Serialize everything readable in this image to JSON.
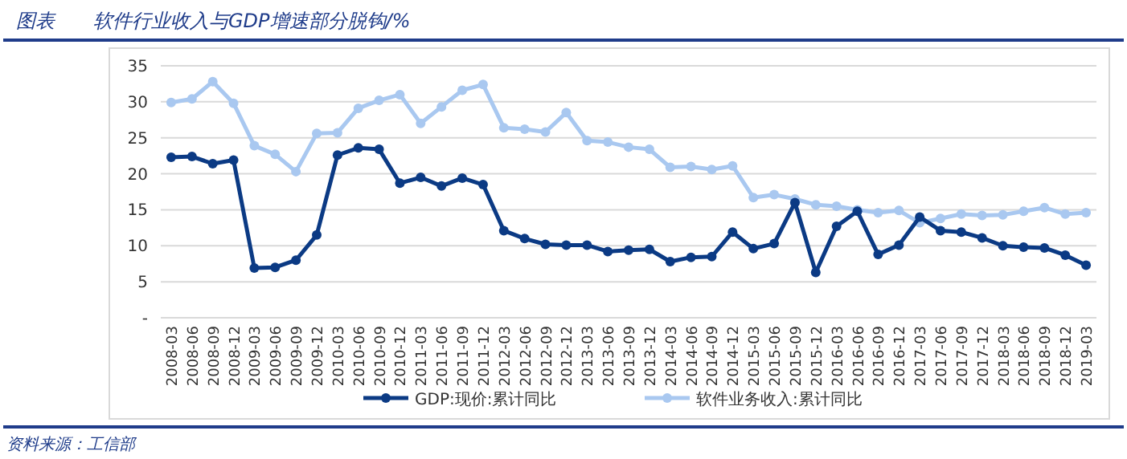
{
  "chart_data": {
    "type": "line",
    "title": "图表　　软件行业收入与GDP增速部分脱钩/%",
    "annotations": [
      "资料来源：工信部"
    ],
    "categories": [
      "2008-03",
      "2008-06",
      "2008-09",
      "2008-12",
      "2009-03",
      "2009-06",
      "2009-09",
      "2009-12",
      "2010-03",
      "2010-06",
      "2010-09",
      "2010-12",
      "2011-03",
      "2011-06",
      "2011-09",
      "2011-12",
      "2012-03",
      "2012-06",
      "2012-09",
      "2012-12",
      "2013-03",
      "2013-06",
      "2013-09",
      "2013-12",
      "2014-03",
      "2014-06",
      "2014-09",
      "2014-12",
      "2015-03",
      "2015-06",
      "2015-09",
      "2015-12",
      "2016-03",
      "2016-06",
      "2016-09",
      "2016-12",
      "2017-03",
      "2017-06",
      "2017-09",
      "2017-12",
      "2018-03",
      "2018-06",
      "2018-09",
      "2018-12",
      "2019-03"
    ],
    "series": [
      {
        "name": "GDP:现价:累计同比",
        "color": "#0b3a84",
        "values": [
          22.3,
          22.4,
          21.4,
          21.9,
          6.9,
          7.0,
          8.0,
          11.5,
          22.6,
          23.6,
          23.4,
          18.7,
          19.5,
          18.3,
          19.4,
          18.5,
          12.1,
          11.0,
          10.2,
          10.1,
          10.1,
          9.2,
          9.4,
          9.5,
          7.8,
          8.4,
          8.5,
          11.9,
          9.6,
          10.3,
          16.0,
          6.3,
          12.7,
          14.8,
          8.8,
          10.1,
          14.0,
          12.1,
          11.9,
          11.1,
          10.0,
          9.8,
          9.7,
          8.7,
          7.3
        ]
      },
      {
        "name": "软件业务收入:累计同比",
        "color": "#a9c8f0",
        "values": [
          29.9,
          30.4,
          32.8,
          29.8,
          23.9,
          22.7,
          20.3,
          25.6,
          25.7,
          29.1,
          30.2,
          31.0,
          27.0,
          29.3,
          31.6,
          32.4,
          26.4,
          26.2,
          25.8,
          28.5,
          24.6,
          24.4,
          23.7,
          23.4,
          20.9,
          21.0,
          20.6,
          21.1,
          16.7,
          17.1,
          16.5,
          15.7,
          15.5,
          15.0,
          14.6,
          14.9,
          13.2,
          13.8,
          14.4,
          14.2,
          14.3,
          14.8,
          15.3,
          14.4,
          14.6
        ]
      }
    ],
    "ylim": [
      0,
      35
    ],
    "yticks": [
      {
        "value": 0,
        "label": "-"
      },
      5,
      10,
      15,
      20,
      25,
      30,
      35
    ],
    "grid": "y",
    "legend": "bottom",
    "marker": "circle",
    "line_style": "solid"
  }
}
